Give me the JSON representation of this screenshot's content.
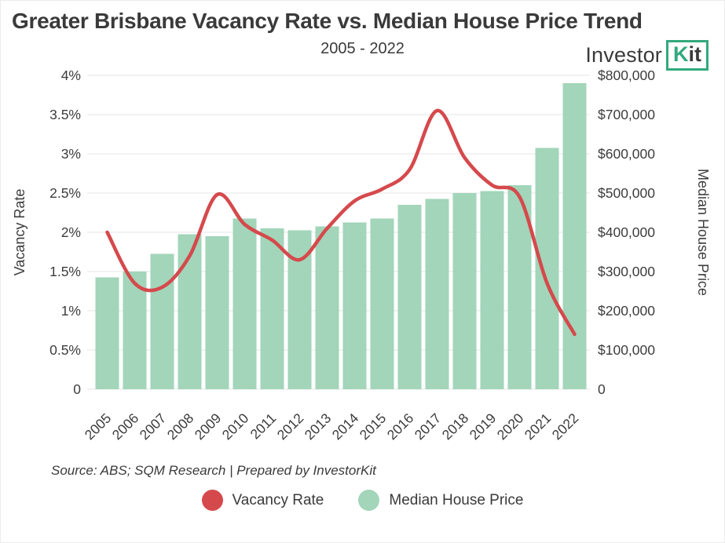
{
  "header": {
    "title": "Greater Brisbane Vacancy Rate vs. Median House Price Trend",
    "subtitle": "2005 - 2022",
    "logo": {
      "text": "Investor",
      "boxed_k": "K",
      "boxed_rest": "it"
    }
  },
  "chart_data": {
    "type": [
      "bar",
      "line"
    ],
    "title": "Greater Brisbane Vacancy Rate vs. Median House Price Trend",
    "subtitle": "2005 - 2022",
    "categories": [
      "2005",
      "2006",
      "2007",
      "2008",
      "2009",
      "2010",
      "2011",
      "2012",
      "2013",
      "2014",
      "2015",
      "2016",
      "2017",
      "2018",
      "2019",
      "2020",
      "2021",
      "2022"
    ],
    "series": [
      {
        "name": "Vacancy Rate",
        "type": "line",
        "axis": "left",
        "color": "#d5494c",
        "values": [
          2.0,
          1.35,
          1.3,
          1.7,
          2.48,
          2.1,
          1.9,
          1.65,
          2.05,
          2.4,
          2.55,
          2.8,
          3.55,
          2.95,
          2.6,
          2.45,
          1.35,
          0.7
        ]
      },
      {
        "name": "Median House Price",
        "type": "bar",
        "axis": "right",
        "color": "#a2d5b9",
        "values": [
          285000,
          300000,
          345000,
          395000,
          390000,
          435000,
          410000,
          405000,
          415000,
          425000,
          435000,
          470000,
          485000,
          500000,
          505000,
          520000,
          615000,
          780000
        ]
      }
    ],
    "left_axis": {
      "label": "Vacancy Rate",
      "min": 0,
      "max": 4,
      "ticks": [
        "0",
        "0.5%",
        "1%",
        "1.5%",
        "2%",
        "2.5%",
        "3%",
        "3.5%",
        "4%"
      ]
    },
    "right_axis": {
      "label": "Median House Price",
      "min": 0,
      "max": 800000,
      "ticks": [
        "0",
        "$100,000",
        "$200,000",
        "$300,000",
        "$400,000",
        "$500,000",
        "$600,000",
        "$700,000",
        "$800,000"
      ]
    },
    "grid": "horizontal",
    "legend_position": "bottom"
  },
  "footer": {
    "source": "Source: ABS; SQM Research | Prepared by InvestorKit"
  },
  "legend": {
    "items": [
      {
        "label": "Vacancy Rate",
        "color": "#d5494c"
      },
      {
        "label": "Median House Price",
        "color": "#a2d5b9"
      }
    ]
  }
}
